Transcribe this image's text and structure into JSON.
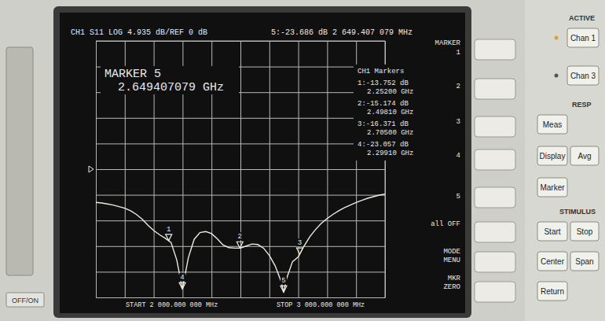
{
  "chart_data": {
    "type": "line",
    "title": "CH1 S11 LOG 4.935 dB/REF 0 dB",
    "subtitle": "5:-23.686 dB  2 649.407 079 MHz",
    "x": [
      2000,
      2020,
      2040,
      2060,
      2080,
      2100,
      2120,
      2140,
      2160,
      2180,
      2200,
      2220,
      2240,
      2260,
      2280,
      2299.1,
      2320,
      2340,
      2360,
      2380,
      2400,
      2420,
      2440,
      2460,
      2480,
      2500,
      2520,
      2540,
      2560,
      2580,
      2600,
      2620,
      2640,
      2649.4,
      2660,
      2680,
      2700,
      2720,
      2740,
      2760,
      2780,
      2800,
      2820,
      2840,
      2860,
      2880,
      2900,
      2920,
      2940,
      2960,
      2980,
      3000
    ],
    "values": [
      -6.4,
      -6.5,
      -6.7,
      -6.9,
      -7.2,
      -7.5,
      -8.0,
      -8.7,
      -9.6,
      -10.8,
      -11.8,
      -12.6,
      -13.3,
      -14.1,
      -17.5,
      -23.06,
      -17.0,
      -13.5,
      -12.2,
      -12.0,
      -12.4,
      -13.4,
      -14.6,
      -15.1,
      -15.2,
      -15.2,
      -14.8,
      -14.4,
      -14.5,
      -15.2,
      -16.6,
      -18.6,
      -21.5,
      -23.69,
      -21.0,
      -17.8,
      -16.9,
      -14.8,
      -13.0,
      -11.6,
      -10.4,
      -9.5,
      -8.7,
      -8.0,
      -7.4,
      -6.9,
      -6.4,
      -6.0,
      -5.6,
      -5.3,
      -5.0,
      -4.8
    ],
    "color": "#ecebe0",
    "xlim": [
      2000,
      3000
    ],
    "xticks": [
      2000,
      2100,
      2200,
      2300,
      2400,
      2500,
      2600,
      2700,
      2800,
      2900,
      3000
    ],
    "ylim": [
      -24.675,
      24.675
    ],
    "yticks": [
      -24.675,
      -19.74,
      -14.805,
      -9.87,
      -4.935,
      0,
      4.935,
      9.87,
      14.805,
      19.74,
      24.675
    ],
    "grid": true,
    "tick_labels": false,
    "markers": [
      {
        "label": "1",
        "x": 2252.0,
        "y": -13.752,
        "value_text": "1:-13.752 dB",
        "freq_text": "2.25200 GHz"
      },
      {
        "label": "2",
        "x": 2498.1,
        "y": -15.174,
        "value_text": "2:-15.174 dB",
        "freq_text": "2.49810 GHz"
      },
      {
        "label": "3",
        "x": 2705.0,
        "y": -16.371,
        "value_text": "3:-16.371 dB",
        "freq_text": "2.70500 GHz"
      },
      {
        "label": "4",
        "x": 2299.1,
        "y": -23.057,
        "value_text": "4:-23.057 dB",
        "freq_text": "2.29910 GHz"
      },
      {
        "label": "5",
        "x": 2649.407079,
        "y": -23.686
      }
    ],
    "marker_title": "MARKER 5",
    "marker_freq": "2.649407079 GHz",
    "markers_title": "CH1 Markers",
    "start_label": "START 2 000.000 000 MHz",
    "stop_label": "STOP 3 000.000 000 MHz",
    "softkeys": [
      "MARKER",
      "1",
      "2",
      "3",
      "4",
      "5",
      "all OFF",
      "MODE MENU",
      "MKR ZERO"
    ],
    "panel_labels": [
      "ACTIVE",
      "RESP",
      "STIMULUS"
    ],
    "buttons": [
      "Chan 1",
      "Chan 3",
      "Meas",
      "Display",
      "Avg",
      "Marker",
      "Start",
      "Stop",
      "Center",
      "Span",
      "Return"
    ],
    "power_label": "OFF/ON"
  }
}
